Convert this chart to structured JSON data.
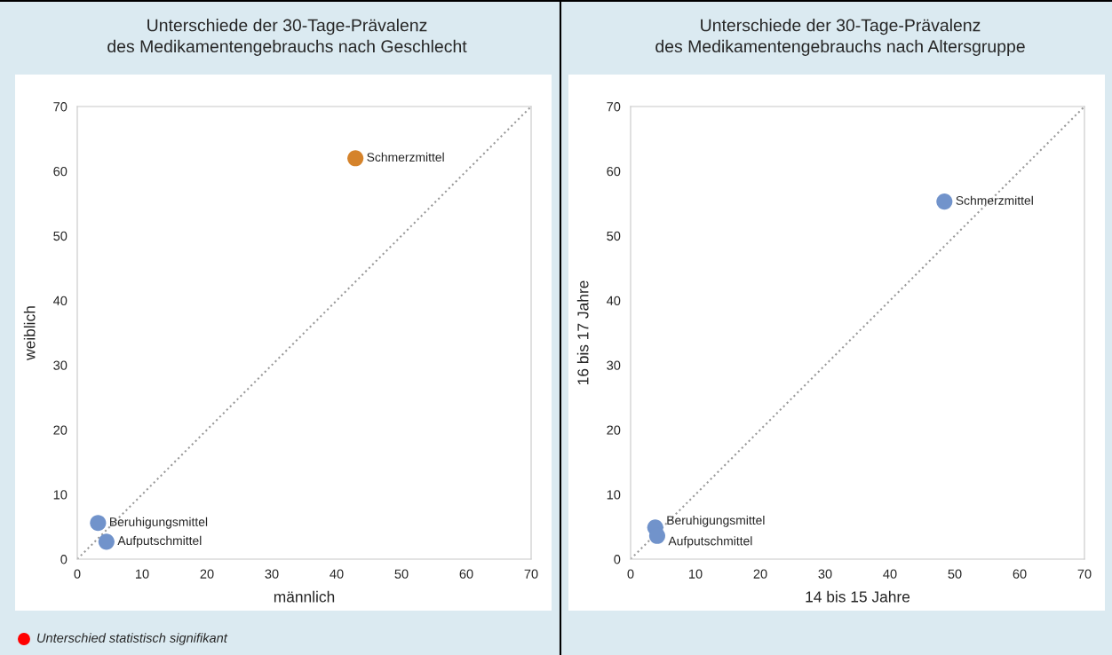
{
  "chart_data": [
    {
      "type": "scatter",
      "title": "Unterschiede der 30-Tage-Prävalenz\ndes Medikamentengebrauchs nach Geschlecht",
      "xlabel": "männlich",
      "ylabel": "weiblich",
      "xlim": [
        0,
        70
      ],
      "ylim": [
        0,
        70
      ],
      "xticks": [
        0,
        10,
        20,
        30,
        40,
        50,
        60,
        70
      ],
      "yticks": [
        0,
        10,
        20,
        30,
        40,
        50,
        60,
        70
      ],
      "grid": false,
      "legend": false,
      "series": [
        {
          "x": [
            42.9,
            3.2,
            4.5
          ],
          "values": [
            62.0,
            5.6,
            2.7
          ],
          "colors": [
            "#d5832b",
            "#7193cb",
            "#7193cb"
          ],
          "marker": "circle"
        },
        {
          "type": "line",
          "x": [
            0,
            70
          ],
          "values": [
            0,
            70
          ],
          "color": "#9a9a9a",
          "line_style": "dotted",
          "marker": "none"
        }
      ],
      "annotations": [
        {
          "text": "Schmerzmittel",
          "x": 42.9,
          "y": 62.0
        },
        {
          "text": "Beruhigungsmittel",
          "x": 3.2,
          "y": 5.6
        },
        {
          "text": "Aufputschmittel",
          "x": 4.5,
          "y": 2.7
        },
        "Unterschied statistisch signifikant"
      ]
    },
    {
      "type": "scatter",
      "title": "Unterschiede der 30-Tage-Prävalenz\ndes Medikamentengebrauchs nach Altersgruppe",
      "xlabel": "14 bis 15 Jahre",
      "ylabel": "16 bis 17 Jahre",
      "xlim": [
        0,
        70
      ],
      "ylim": [
        0,
        70
      ],
      "xticks": [
        0,
        10,
        20,
        30,
        40,
        50,
        60,
        70
      ],
      "yticks": [
        0,
        10,
        20,
        30,
        40,
        50,
        60,
        70
      ],
      "grid": false,
      "legend": false,
      "series": [
        {
          "x": [
            48.4,
            3.8,
            4.1
          ],
          "values": [
            55.3,
            4.9,
            3.6
          ],
          "colors": [
            "#7193cb",
            "#7193cb",
            "#7193cb"
          ],
          "marker": "circle"
        },
        {
          "type": "line",
          "x": [
            0,
            70
          ],
          "values": [
            0,
            70
          ],
          "color": "#9a9a9a",
          "line_style": "dotted",
          "marker": "none"
        }
      ],
      "annotations": [
        {
          "text": "Schmerzmittel",
          "x": 48.4,
          "y": 55.3
        },
        {
          "text": "Beruhigungsmittel",
          "x": 3.8,
          "y": 4.9
        },
        {
          "text": "Aufputschmittel",
          "x": 4.1,
          "y": 3.6
        }
      ]
    }
  ]
}
